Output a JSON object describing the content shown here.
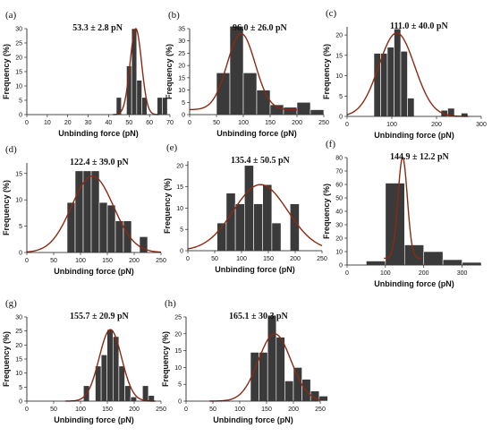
{
  "chart_data": [
    {
      "type": "bar",
      "panel": "(a)",
      "annotation": "53.3 ± 2.8 pN",
      "xlabel": "Unbinding force (pN)",
      "ylabel": "Frequency (%)",
      "xlim": [
        0,
        70
      ],
      "ylim": [
        0,
        30
      ],
      "xticks": [
        0,
        10,
        20,
        30,
        40,
        50,
        60,
        70
      ],
      "yticks": [
        0,
        5,
        10,
        15,
        20,
        25,
        30
      ],
      "bin_width": 2.5,
      "bins": [
        45,
        47.5,
        50,
        52.5,
        55,
        57.5,
        60,
        62.5,
        65,
        67.5
      ],
      "values": [
        6,
        0,
        17,
        30,
        12,
        6,
        0,
        0,
        6,
        6
      ],
      "fit": {
        "mean": 53.3,
        "sd": 2.8,
        "peak": 30,
        "baseline": 0
      }
    },
    {
      "type": "bar",
      "panel": "(b)",
      "annotation": "96.0 ± 26.0 pN",
      "xlabel": "Unbinding force (pN)",
      "ylabel": "Frequency (%)",
      "xlim": [
        0,
        250
      ],
      "ylim": [
        0,
        35
      ],
      "xticks": [
        0,
        50,
        100,
        150,
        200,
        250
      ],
      "yticks": [
        0,
        5,
        10,
        15,
        20,
        25,
        30,
        35
      ],
      "bin_width": 25,
      "bins": [
        62.5,
        87.5,
        112.5,
        137.5,
        162.5,
        187.5,
        212.5,
        237.5
      ],
      "values": [
        17,
        36,
        17,
        10,
        4,
        3,
        5,
        2
      ],
      "fit": {
        "mean": 96.0,
        "sd": 26.0,
        "peak": 33,
        "baseline": 2
      }
    },
    {
      "type": "bar",
      "panel": "(c)",
      "annotation": "111.0 ± 40.0 pN",
      "xlabel": "Unbinding force (pN)",
      "ylabel": "Frequency (%)",
      "xlim": [
        0,
        300
      ],
      "ylim": [
        0,
        22
      ],
      "xticks": [
        0,
        100,
        200,
        300
      ],
      "yticks": [
        0,
        5,
        10,
        15,
        20
      ],
      "bin_width": 15,
      "bins": [
        67.5,
        82.5,
        97.5,
        112.5,
        127.5,
        142.5,
        157.5,
        172.5,
        187.5,
        202.5,
        217.5,
        232.5,
        247.5,
        262.5
      ],
      "values": [
        15.5,
        15.5,
        17,
        21.5,
        16,
        4.5,
        0,
        0,
        0,
        0,
        1.5,
        2,
        0,
        0.8
      ],
      "fit": {
        "mean": 111.0,
        "sd": 40.0,
        "peak": 20.5,
        "baseline": 0
      }
    },
    {
      "type": "bar",
      "panel": "(d)",
      "annotation": "122.4 ± 39.0 pN",
      "xlabel": "Unbinding force (pN)",
      "ylabel": "Frequency (%)",
      "xlim": [
        0,
        250
      ],
      "ylim": [
        0,
        17
      ],
      "xticks": [
        0,
        50,
        100,
        150,
        200,
        250
      ],
      "yticks": [
        0,
        5,
        10,
        15
      ],
      "bin_width": 15,
      "bins": [
        82.5,
        97.5,
        112.5,
        127.5,
        142.5,
        157.5,
        172.5,
        187.5,
        202.5,
        217.5
      ],
      "values": [
        9.5,
        15.5,
        15.5,
        15.5,
        9.5,
        9,
        6,
        6,
        0,
        3
      ],
      "fit": {
        "mean": 122.4,
        "sd": 39.0,
        "peak": 14.5,
        "baseline": 0
      }
    },
    {
      "type": "bar",
      "panel": "(e)",
      "annotation": "135.4 ± 50.5 pN",
      "xlabel": "Unbinding force (pN)",
      "ylabel": "Frequency (%)",
      "xlim": [
        0,
        250
      ],
      "ylim": [
        0,
        21
      ],
      "xticks": [
        0,
        50,
        100,
        150,
        200,
        250
      ],
      "yticks": [
        0,
        5,
        10,
        15,
        20
      ],
      "bin_width": 17,
      "bins": [
        63,
        80,
        97,
        114,
        131,
        148,
        165,
        182,
        199
      ],
      "values": [
        6.5,
        13.5,
        11,
        20,
        11,
        15.5,
        6.5,
        0,
        11
      ],
      "fit": {
        "mean": 135.4,
        "sd": 50.5,
        "peak": 15.5,
        "baseline": 0
      }
    },
    {
      "type": "bar",
      "panel": "(f)",
      "annotation": "144.9 ± 12.2 pN",
      "xlabel": "Unbinding force (pN)",
      "ylabel": "Frequency (%)",
      "xlim": [
        0,
        350
      ],
      "ylim": [
        0,
        80
      ],
      "xticks": [
        0,
        100,
        200,
        300
      ],
      "yticks": [
        0,
        10,
        20,
        30,
        40,
        50,
        60,
        70,
        80
      ],
      "bin_width": 50,
      "bins": [
        75,
        125,
        175,
        225,
        275,
        325
      ],
      "values": [
        3,
        61,
        15,
        10,
        4,
        2
      ],
      "fit": {
        "mean": 144.9,
        "sd": 12.2,
        "peak": 80,
        "baseline": 5
      }
    },
    {
      "type": "bar",
      "panel": "(g)",
      "annotation": "155.7 ± 20.9 pN",
      "xlabel": "Unbinding force (pN)",
      "ylabel": "Frequency (%)",
      "xlim": [
        0,
        250
      ],
      "ylim": [
        0,
        30
      ],
      "xticks": [
        0,
        50,
        100,
        150,
        200,
        250
      ],
      "yticks": [
        0,
        5,
        10,
        15,
        20,
        25,
        30
      ],
      "bin_width": 11,
      "bins": [
        111,
        122,
        133,
        144,
        155,
        166,
        177,
        188,
        199,
        210,
        221,
        232
      ],
      "values": [
        5.5,
        0,
        12.5,
        16.5,
        25.5,
        23,
        12.5,
        5.5,
        1.5,
        0,
        5.5,
        2
      ],
      "fit": {
        "mean": 155.7,
        "sd": 20.9,
        "peak": 25.5,
        "baseline": 0
      }
    },
    {
      "type": "bar",
      "panel": "(h)",
      "annotation": "165.1 ± 30.3 pN",
      "xlabel": "Unbinding force (pN)",
      "ylabel": "Frequency (%)",
      "xlim": [
        0,
        250
      ],
      "ylim": [
        0,
        25
      ],
      "xticks": [
        0,
        50,
        100,
        150,
        200,
        250
      ],
      "yticks": [
        0,
        5,
        10,
        15,
        20,
        25
      ],
      "bin_width": 16,
      "bins": [
        128,
        144,
        160,
        176,
        192,
        208,
        224,
        240,
        256
      ],
      "values": [
        14.5,
        14.5,
        25.5,
        19,
        6,
        10,
        6.5,
        3,
        1.5
      ],
      "fit": {
        "mean": 165.1,
        "sd": 30.3,
        "peak": 20,
        "baseline": 0
      }
    }
  ],
  "colors": {
    "bar": "#3a3a3a",
    "fit": "#8b2a12",
    "axis": "#111111"
  }
}
